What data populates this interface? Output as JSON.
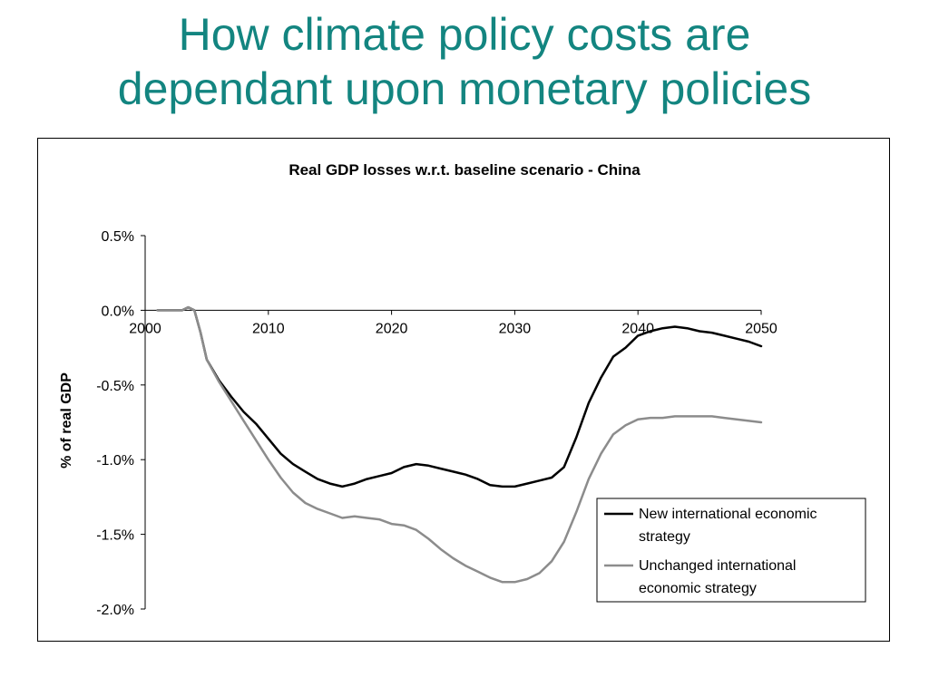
{
  "slide": {
    "title_line1": "How climate policy costs are",
    "title_line2": "dependant upon monetary policies"
  },
  "colors": {
    "title": "#138580",
    "series_new": "#000000",
    "series_unchanged": "#8c8c8c"
  },
  "chart_data": {
    "type": "line",
    "title": "Real GDP losses w.r.t. baseline scenario - China",
    "xlabel": "",
    "ylabel": "% of real GDP",
    "xlim": [
      2000,
      2050
    ],
    "ylim": [
      -2.0,
      0.5
    ],
    "x_ticks": [
      2000,
      2010,
      2020,
      2030,
      2040,
      2050
    ],
    "y_ticks": [
      0.5,
      0.0,
      -0.5,
      -1.0,
      -1.5,
      -2.0
    ],
    "x_tick_labels": [
      "2000",
      "2010",
      "2020",
      "2030",
      "2040",
      "2050"
    ],
    "y_tick_labels": [
      "0.5%",
      "0.0%",
      "-0.5%",
      "-1.0%",
      "-1.5%",
      "-2.0%"
    ],
    "grid": false,
    "legend_position": "bottom-right",
    "series": [
      {
        "name": "New international economic strategy",
        "x": [
          2001,
          2003,
          2003.5,
          2004,
          2004.5,
          2005,
          2006,
          2007,
          2008,
          2009,
          2010,
          2011,
          2012,
          2013,
          2014,
          2015,
          2016,
          2017,
          2018,
          2019,
          2020,
          2021,
          2022,
          2023,
          2024,
          2025,
          2026,
          2027,
          2028,
          2029,
          2030,
          2031,
          2032,
          2033,
          2034,
          2035,
          2036,
          2037,
          2038,
          2039,
          2040,
          2041,
          2042,
          2043,
          2044,
          2045,
          2046,
          2047,
          2048,
          2049,
          2050
        ],
        "y": [
          0.0,
          0.0,
          0.02,
          0.0,
          -0.15,
          -0.33,
          -0.47,
          -0.58,
          -0.68,
          -0.76,
          -0.86,
          -0.96,
          -1.03,
          -1.08,
          -1.13,
          -1.16,
          -1.18,
          -1.16,
          -1.13,
          -1.11,
          -1.09,
          -1.05,
          -1.03,
          -1.04,
          -1.06,
          -1.08,
          -1.1,
          -1.13,
          -1.17,
          -1.18,
          -1.18,
          -1.16,
          -1.14,
          -1.12,
          -1.05,
          -0.85,
          -0.62,
          -0.45,
          -0.31,
          -0.25,
          -0.17,
          -0.14,
          -0.12,
          -0.11,
          -0.12,
          -0.14,
          -0.15,
          -0.17,
          -0.19,
          -0.21,
          -0.24
        ]
      },
      {
        "name": "Unchanged international economic strategy",
        "x": [
          2001,
          2003,
          2003.5,
          2004,
          2004.5,
          2005,
          2006,
          2007,
          2008,
          2009,
          2010,
          2011,
          2012,
          2013,
          2014,
          2015,
          2016,
          2017,
          2018,
          2019,
          2020,
          2021,
          2022,
          2023,
          2024,
          2025,
          2026,
          2027,
          2028,
          2029,
          2030,
          2031,
          2032,
          2033,
          2034,
          2035,
          2036,
          2037,
          2038,
          2039,
          2040,
          2041,
          2042,
          2043,
          2044,
          2045,
          2046,
          2047,
          2048,
          2049,
          2050
        ],
        "y": [
          0.0,
          0.0,
          0.02,
          0.0,
          -0.15,
          -0.33,
          -0.48,
          -0.61,
          -0.74,
          -0.87,
          -1.0,
          -1.12,
          -1.22,
          -1.29,
          -1.33,
          -1.36,
          -1.39,
          -1.38,
          -1.39,
          -1.4,
          -1.43,
          -1.44,
          -1.47,
          -1.53,
          -1.6,
          -1.66,
          -1.71,
          -1.75,
          -1.79,
          -1.82,
          -1.82,
          -1.8,
          -1.76,
          -1.68,
          -1.55,
          -1.35,
          -1.13,
          -0.96,
          -0.83,
          -0.77,
          -0.73,
          -0.72,
          -0.72,
          -0.71,
          -0.71,
          -0.71,
          -0.71,
          -0.72,
          -0.73,
          -0.74,
          -0.75
        ]
      }
    ]
  }
}
